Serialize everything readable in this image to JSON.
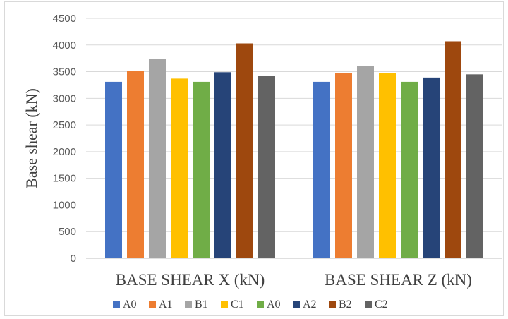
{
  "chart_data": {
    "type": "bar",
    "title": "",
    "xlabel": "",
    "ylabel": "Base shear (kN)",
    "categories": [
      "BASE SHEAR X (kN)",
      "BASE SHEAR Z (kN)"
    ],
    "ylim": [
      0,
      4500
    ],
    "yticks": [
      0,
      500,
      1000,
      1500,
      2000,
      2500,
      3000,
      3500,
      4000,
      4500
    ],
    "grid": true,
    "legend_position": "bottom",
    "series": [
      {
        "name": "A0",
        "color": "#4472C4",
        "values": [
          3310,
          3310
        ]
      },
      {
        "name": "A1",
        "color": "#ED7D31",
        "values": [
          3520,
          3470
        ]
      },
      {
        "name": "B1",
        "color": "#A5A5A5",
        "values": [
          3740,
          3600
        ]
      },
      {
        "name": "C1",
        "color": "#FFC000",
        "values": [
          3370,
          3480
        ]
      },
      {
        "name": "A0",
        "color": "#70AD47",
        "values": [
          3310,
          3310
        ]
      },
      {
        "name": "A2",
        "color": "#264478",
        "values": [
          3490,
          3390
        ]
      },
      {
        "name": "B2",
        "color": "#9E480E",
        "values": [
          4030,
          4070
        ]
      },
      {
        "name": "C2",
        "color": "#636363",
        "values": [
          3420,
          3450
        ]
      }
    ]
  }
}
